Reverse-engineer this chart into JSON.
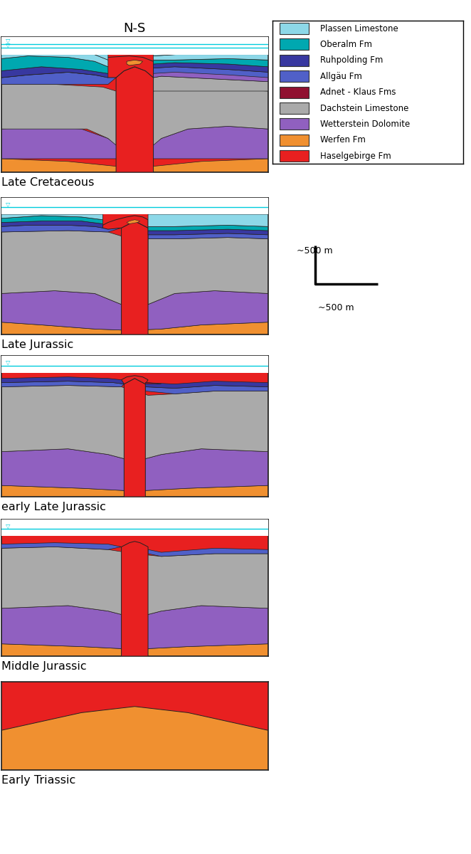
{
  "title": "N-S",
  "colors": {
    "plassen": "#8dd8e8",
    "oberalm": "#00a8b0",
    "ruhpolding": "#3838a0",
    "allgau": "#5060c8",
    "adnet": "#901030",
    "dachstein": "#aaaaaa",
    "wetterstein": "#9060c0",
    "werfen": "#f09030",
    "haselgebirge": "#e82020",
    "water_line": "#00ccdd",
    "white": "#ffffff",
    "outline": "#222222",
    "background": "#ffffff"
  },
  "legend_entries": [
    {
      "label": "Plassen Limestone",
      "color": "#8dd8e8"
    },
    {
      "label": "Oberalm Fm",
      "color": "#00a8b0"
    },
    {
      "label": "Ruhpolding Fm",
      "color": "#3838a0"
    },
    {
      "label": "Allgäu Fm",
      "color": "#5060c8"
    },
    {
      "label": "Adnet - Klaus Fms",
      "color": "#901030"
    },
    {
      "label": "Dachstein Limestone",
      "color": "#aaaaaa"
    },
    {
      "label": "Wetterstein Dolomite",
      "color": "#9060c0"
    },
    {
      "label": "Werfen Fm",
      "color": "#f09030"
    },
    {
      "label": "Haselgebirge Fm",
      "color": "#e82020"
    }
  ],
  "panel_labels": [
    "Late Cretaceous",
    "Late Jurassic",
    "early Late Jurassic",
    "Middle Jurassic",
    "Early Triassic"
  ]
}
